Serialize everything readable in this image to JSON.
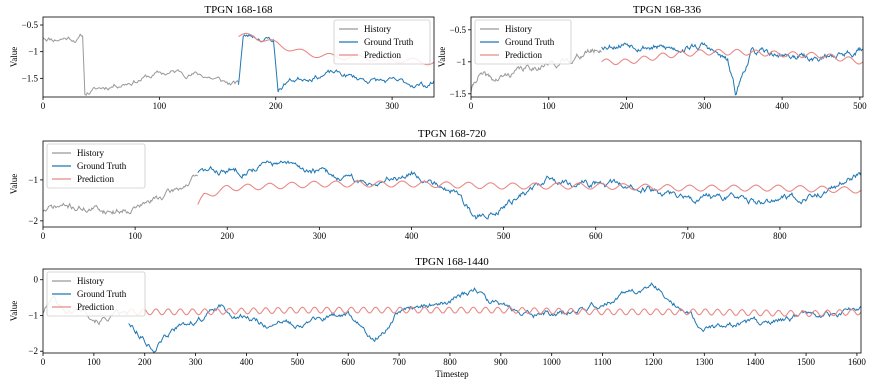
{
  "colors": {
    "history": "#999999",
    "truth": "#1f77b4",
    "prediction": "#e88a86"
  },
  "chart_data": [
    {
      "type": "line",
      "title": "TPGN 168-168",
      "xlabel": "",
      "ylabel": "Value",
      "xlim": [
        0,
        336
      ],
      "ylim": [
        -1.85,
        -0.35
      ],
      "xticks": [
        0,
        100,
        200,
        300
      ],
      "yticks": [
        -0.5,
        -1.0,
        -1.5
      ],
      "grid": false,
      "legend": "top-right",
      "series": [
        {
          "name": "History",
          "seed": 11,
          "x": [
            0,
            10,
            20,
            30,
            34,
            36,
            45,
            60,
            80,
            100,
            120,
            140,
            160,
            168
          ],
          "y": [
            -0.72,
            -0.75,
            -0.73,
            -0.75,
            -0.7,
            -1.78,
            -1.72,
            -1.62,
            -1.52,
            -1.42,
            -1.38,
            -1.45,
            -1.6,
            -1.62
          ]
        },
        {
          "name": "Ground Truth",
          "seed": 23,
          "x": [
            168,
            172,
            180,
            190,
            198,
            202,
            210,
            230,
            250,
            270,
            290,
            310,
            330,
            336
          ],
          "y": [
            -1.6,
            -0.72,
            -0.7,
            -0.75,
            -0.78,
            -1.72,
            -1.55,
            -1.45,
            -1.4,
            -1.5,
            -1.55,
            -1.6,
            -1.62,
            -1.55
          ]
        },
        {
          "name": "Prediction",
          "seed": 37,
          "x": [
            168,
            180,
            200,
            220,
            240,
            260,
            280,
            300,
            320,
            336
          ],
          "y": [
            -0.72,
            -0.7,
            -0.85,
            -1.0,
            -1.08,
            -1.1,
            -1.12,
            -1.15,
            -1.18,
            -1.2
          ]
        }
      ]
    },
    {
      "type": "line",
      "title": "TPGN 168-336",
      "xlabel": "",
      "ylabel": "Value",
      "xlim": [
        0,
        504
      ],
      "ylim": [
        -1.55,
        -0.3
      ],
      "xticks": [
        0,
        100,
        200,
        300,
        400,
        500
      ],
      "yticks": [
        -0.5,
        -1.0,
        -1.5
      ],
      "grid": false,
      "legend": "top-left",
      "series": [
        {
          "name": "History",
          "seed": 41,
          "x": [
            0,
            10,
            30,
            60,
            90,
            120,
            150,
            168
          ],
          "y": [
            -1.45,
            -1.2,
            -1.3,
            -1.15,
            -1.05,
            -1.0,
            -0.85,
            -0.8
          ]
        },
        {
          "name": "Ground Truth",
          "seed": 53,
          "x": [
            168,
            200,
            250,
            300,
            330,
            340,
            360,
            400,
            450,
            504
          ],
          "y": [
            -0.75,
            -0.7,
            -0.8,
            -0.75,
            -1.0,
            -1.5,
            -0.85,
            -0.9,
            -0.95,
            -0.8
          ]
        },
        {
          "name": "Prediction",
          "seed": 67,
          "x": [
            168,
            200,
            250,
            300,
            350,
            400,
            450,
            504
          ],
          "y": [
            -1.0,
            -1.0,
            -0.9,
            -0.85,
            -0.85,
            -0.88,
            -0.9,
            -1.0
          ]
        }
      ]
    },
    {
      "type": "line",
      "title": "TPGN 168-720",
      "xlabel": "",
      "ylabel": "Value",
      "xlim": [
        0,
        888
      ],
      "ylim": [
        -2.15,
        -0.05
      ],
      "xticks": [
        0,
        100,
        200,
        300,
        400,
        500,
        600,
        700,
        800
      ],
      "yticks": [
        -1,
        -2
      ],
      "grid": false,
      "legend": "top-left",
      "series": [
        {
          "name": "History",
          "seed": 71,
          "x": [
            0,
            20,
            50,
            80,
            110,
            140,
            168
          ],
          "y": [
            -1.75,
            -1.65,
            -1.7,
            -1.75,
            -1.6,
            -1.3,
            -0.95
          ]
        },
        {
          "name": "Ground Truth",
          "seed": 83,
          "x": [
            168,
            200,
            250,
            300,
            350,
            400,
            450,
            470,
            500,
            550,
            600,
            650,
            700,
            750,
            800,
            850,
            888
          ],
          "y": [
            -0.8,
            -0.8,
            -0.6,
            -0.8,
            -1.1,
            -0.8,
            -1.3,
            -1.95,
            -1.6,
            -1.0,
            -1.1,
            -1.2,
            -1.4,
            -1.5,
            -1.5,
            -1.3,
            -0.8
          ]
        },
        {
          "name": "Prediction",
          "seed": 97,
          "x": [
            168,
            175,
            200,
            300,
            400,
            500,
            600,
            700,
            800,
            888
          ],
          "y": [
            -1.6,
            -1.4,
            -1.2,
            -1.1,
            -1.1,
            -1.15,
            -1.15,
            -1.2,
            -1.2,
            -1.25
          ]
        }
      ]
    },
    {
      "type": "line",
      "title": "TPGN 168-1440",
      "xlabel": "Timestep",
      "ylabel": "Value",
      "xlim": [
        0,
        1608
      ],
      "ylim": [
        -2.05,
        0.3
      ],
      "xticks": [
        0,
        100,
        200,
        300,
        400,
        500,
        600,
        700,
        800,
        900,
        1000,
        1100,
        1200,
        1300,
        1400,
        1500,
        1600
      ],
      "yticks": [
        0,
        -1,
        -2
      ],
      "grid": false,
      "legend": "top-left",
      "series": [
        {
          "name": "History",
          "seed": 101,
          "x": [
            0,
            20,
            50,
            80,
            110,
            140,
            168
          ],
          "y": [
            -0.9,
            -0.5,
            -0.9,
            -0.8,
            -1.1,
            -1.0,
            -1.0
          ]
        },
        {
          "name": "Ground Truth",
          "seed": 113,
          "x": [
            168,
            220,
            260,
            350,
            450,
            600,
            650,
            700,
            800,
            850,
            900,
            1000,
            1100,
            1200,
            1250,
            1300,
            1400,
            1500,
            1608
          ],
          "y": [
            -1.2,
            -1.9,
            -1.4,
            -0.8,
            -1.3,
            -1.0,
            -1.7,
            -0.9,
            -0.6,
            -0.3,
            -0.8,
            -1.0,
            -0.7,
            -0.1,
            -0.7,
            -1.4,
            -1.2,
            -1.0,
            -0.9
          ]
        },
        {
          "name": "Prediction",
          "seed": 127,
          "x": [
            168,
            300,
            500,
            700,
            900,
            1100,
            1300,
            1500,
            1608
          ],
          "y": [
            -0.9,
            -0.9,
            -0.85,
            -0.85,
            -0.85,
            -0.9,
            -0.9,
            -0.95,
            -0.9
          ]
        }
      ]
    }
  ]
}
